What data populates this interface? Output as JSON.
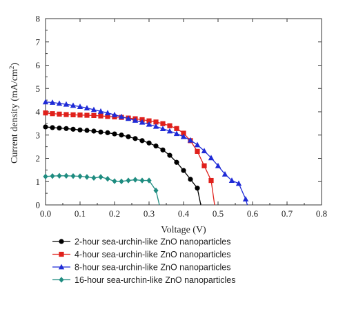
{
  "chart_data": {
    "type": "line",
    "xlabel": "Voltage (V)",
    "ylabel_main": "Current density (mA/cm",
    "ylabel_sup": "2",
    "ylabel_tail": ")",
    "xlim": [
      0.0,
      0.8
    ],
    "ylim": [
      0,
      8
    ],
    "xticks": [
      0.0,
      0.1,
      0.2,
      0.3,
      0.4,
      0.5,
      0.6,
      0.7,
      0.8
    ],
    "xtick_labels": [
      "0.0",
      "0.1",
      "0.2",
      "0.3",
      "0.4",
      "0.5",
      "0.6",
      "0.7",
      "0.8"
    ],
    "yticks": [
      0,
      1,
      2,
      3,
      4,
      5,
      6,
      7,
      8
    ],
    "ytick_labels": [
      "0",
      "1",
      "2",
      "3",
      "4",
      "5",
      "6",
      "7",
      "8"
    ],
    "grid": false,
    "legend_position": "below",
    "series": [
      {
        "name": "2-hour sea-urchin-like ZnO nanoparticles",
        "color": "#000000",
        "marker": "circle",
        "x": [
          0.0,
          0.02,
          0.04,
          0.06,
          0.08,
          0.1,
          0.12,
          0.14,
          0.16,
          0.18,
          0.2,
          0.22,
          0.24,
          0.26,
          0.28,
          0.3,
          0.32,
          0.34,
          0.36,
          0.38,
          0.4,
          0.42,
          0.44
        ],
        "y": [
          3.35,
          3.32,
          3.3,
          3.28,
          3.25,
          3.22,
          3.2,
          3.17,
          3.13,
          3.1,
          3.05,
          3.0,
          2.93,
          2.85,
          2.76,
          2.66,
          2.53,
          2.36,
          2.13,
          1.83,
          1.48,
          1.1,
          0.72
        ],
        "end_x": 0.45
      },
      {
        "name": "4-hour sea-urchin-like ZnO nanoparticles",
        "color": "#e0201b",
        "marker": "square",
        "x": [
          0.0,
          0.02,
          0.04,
          0.06,
          0.08,
          0.1,
          0.12,
          0.14,
          0.16,
          0.18,
          0.2,
          0.22,
          0.24,
          0.26,
          0.28,
          0.3,
          0.32,
          0.34,
          0.36,
          0.38,
          0.4,
          0.42,
          0.44,
          0.46,
          0.48
        ],
        "y": [
          3.95,
          3.92,
          3.9,
          3.88,
          3.87,
          3.86,
          3.85,
          3.84,
          3.82,
          3.8,
          3.78,
          3.76,
          3.73,
          3.7,
          3.66,
          3.61,
          3.56,
          3.49,
          3.4,
          3.28,
          3.08,
          2.76,
          2.3,
          1.68,
          1.05
        ],
        "end_x": 0.49
      },
      {
        "name": "8-hour sea-urchin-like ZnO nanoparticles",
        "color": "#1f2bd6",
        "marker": "triangle",
        "x": [
          0.0,
          0.02,
          0.04,
          0.06,
          0.08,
          0.1,
          0.12,
          0.14,
          0.16,
          0.18,
          0.2,
          0.22,
          0.24,
          0.26,
          0.28,
          0.3,
          0.32,
          0.34,
          0.36,
          0.38,
          0.4,
          0.42,
          0.44,
          0.46,
          0.48,
          0.5,
          0.52,
          0.54,
          0.56,
          0.58
        ],
        "y": [
          4.42,
          4.4,
          4.36,
          4.32,
          4.27,
          4.22,
          4.16,
          4.09,
          4.02,
          3.95,
          3.87,
          3.79,
          3.71,
          3.63,
          3.55,
          3.46,
          3.37,
          3.27,
          3.17,
          3.06,
          2.93,
          2.78,
          2.58,
          2.32,
          2.02,
          1.68,
          1.32,
          1.05,
          0.92,
          0.25
        ],
        "end_x": 0.585
      },
      {
        "name": "16-hour sea-urchin-like ZnO nanoparticles",
        "color": "#1e8c80",
        "marker": "diamond",
        "x": [
          0.0,
          0.02,
          0.04,
          0.06,
          0.08,
          0.1,
          0.12,
          0.14,
          0.16,
          0.18,
          0.2,
          0.22,
          0.24,
          0.26,
          0.28,
          0.3,
          0.32
        ],
        "y": [
          1.22,
          1.24,
          1.25,
          1.25,
          1.24,
          1.23,
          1.2,
          1.16,
          1.2,
          1.12,
          1.02,
          1.01,
          1.05,
          1.08,
          1.05,
          1.05,
          0.62
        ],
        "end_x": 0.33
      }
    ]
  }
}
